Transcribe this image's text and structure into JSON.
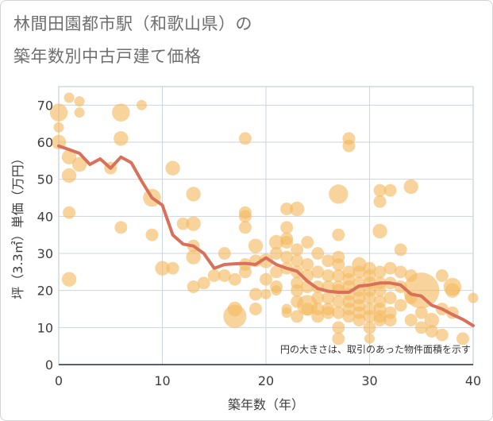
{
  "title_line1": "林間田園都市駅（和歌山県）の",
  "title_line2": "築年数別中古戸建て価格",
  "chart_data": {
    "type": "scatter",
    "xlabel": "築年数（年）",
    "ylabel": "坪（3.3㎡）単価（万円）",
    "xlim": [
      0,
      40
    ],
    "ylim": [
      0,
      75
    ],
    "xticks": [
      0,
      10,
      20,
      30,
      40
    ],
    "yticks": [
      0,
      10,
      20,
      30,
      40,
      50,
      60,
      70
    ],
    "grid": true,
    "note": "円の大きさは、取引のあった物件面積を示す",
    "colors": {
      "bubble": "#f3b95f",
      "line": "#d9705a",
      "grid": "#cdd5e0"
    },
    "bubbles": [
      {
        "x": 0,
        "y": 68,
        "s": 3
      },
      {
        "x": 0,
        "y": 64,
        "s": 1
      },
      {
        "x": 0,
        "y": 60,
        "s": 2
      },
      {
        "x": 1,
        "y": 72,
        "s": 1
      },
      {
        "x": 1,
        "y": 56,
        "s": 2
      },
      {
        "x": 1,
        "y": 51,
        "s": 2
      },
      {
        "x": 1,
        "y": 41,
        "s": 1.5
      },
      {
        "x": 1,
        "y": 23,
        "s": 2
      },
      {
        "x": 2,
        "y": 71,
        "s": 1
      },
      {
        "x": 2,
        "y": 68,
        "s": 1
      },
      {
        "x": 2,
        "y": 54,
        "s": 2
      },
      {
        "x": 5,
        "y": 53,
        "s": 1.5
      },
      {
        "x": 6,
        "y": 68,
        "s": 3
      },
      {
        "x": 6,
        "y": 61,
        "s": 2
      },
      {
        "x": 6,
        "y": 37,
        "s": 1.5
      },
      {
        "x": 8,
        "y": 70,
        "s": 1
      },
      {
        "x": 9,
        "y": 45,
        "s": 3
      },
      {
        "x": 9,
        "y": 35,
        "s": 1.5
      },
      {
        "x": 10,
        "y": 26,
        "s": 2
      },
      {
        "x": 11,
        "y": 53,
        "s": 2
      },
      {
        "x": 11,
        "y": 26,
        "s": 1.5
      },
      {
        "x": 12,
        "y": 38,
        "s": 1.5
      },
      {
        "x": 13,
        "y": 46,
        "s": 2
      },
      {
        "x": 13,
        "y": 38,
        "s": 2
      },
      {
        "x": 13,
        "y": 32,
        "s": 1.5
      },
      {
        "x": 13,
        "y": 29,
        "s": 2
      },
      {
        "x": 13,
        "y": 21,
        "s": 1.5
      },
      {
        "x": 14,
        "y": 22,
        "s": 1.5
      },
      {
        "x": 15,
        "y": 24,
        "s": 1.5
      },
      {
        "x": 16,
        "y": 30,
        "s": 1.5
      },
      {
        "x": 16,
        "y": 24,
        "s": 1.5
      },
      {
        "x": 17,
        "y": 13,
        "s": 5
      },
      {
        "x": 17,
        "y": 15,
        "s": 2
      },
      {
        "x": 17,
        "y": 23,
        "s": 1.5
      },
      {
        "x": 18,
        "y": 61,
        "s": 1.5
      },
      {
        "x": 18,
        "y": 41,
        "s": 1.5
      },
      {
        "x": 18,
        "y": 40,
        "s": 1.5
      },
      {
        "x": 18,
        "y": 37,
        "s": 1.5
      },
      {
        "x": 18,
        "y": 27,
        "s": 1.5
      },
      {
        "x": 18,
        "y": 25,
        "s": 1.5
      },
      {
        "x": 19,
        "y": 32,
        "s": 2
      },
      {
        "x": 19,
        "y": 28,
        "s": 1.5
      },
      {
        "x": 19,
        "y": 19,
        "s": 1.5
      },
      {
        "x": 19,
        "y": 15,
        "s": 1.5
      },
      {
        "x": 20,
        "y": 28,
        "s": 2
      },
      {
        "x": 20,
        "y": 23,
        "s": 1.5
      },
      {
        "x": 20,
        "y": 19,
        "s": 1
      },
      {
        "x": 21,
        "y": 33,
        "s": 2
      },
      {
        "x": 21,
        "y": 30,
        "s": 1.5
      },
      {
        "x": 21,
        "y": 25,
        "s": 1.5
      },
      {
        "x": 21,
        "y": 21,
        "s": 1.5
      },
      {
        "x": 21,
        "y": 20,
        "s": 1
      },
      {
        "x": 22,
        "y": 42,
        "s": 1.5
      },
      {
        "x": 22,
        "y": 37,
        "s": 1.5
      },
      {
        "x": 22,
        "y": 34,
        "s": 1.5
      },
      {
        "x": 22,
        "y": 33,
        "s": 1.5
      },
      {
        "x": 22,
        "y": 29,
        "s": 1.5
      },
      {
        "x": 22,
        "y": 26,
        "s": 1.5
      },
      {
        "x": 22,
        "y": 15,
        "s": 1
      },
      {
        "x": 22,
        "y": 14,
        "s": 1
      },
      {
        "x": 23,
        "y": 42,
        "s": 2
      },
      {
        "x": 23,
        "y": 31,
        "s": 1.5
      },
      {
        "x": 23,
        "y": 28,
        "s": 1.5
      },
      {
        "x": 23,
        "y": 25,
        "s": 1.5
      },
      {
        "x": 23,
        "y": 22,
        "s": 1.5
      },
      {
        "x": 23,
        "y": 20,
        "s": 1.5
      },
      {
        "x": 23,
        "y": 17,
        "s": 1.5
      },
      {
        "x": 23,
        "y": 13,
        "s": 1.5
      },
      {
        "x": 24,
        "y": 33,
        "s": 1.5
      },
      {
        "x": 24,
        "y": 27,
        "s": 1.5
      },
      {
        "x": 24,
        "y": 24,
        "s": 1.5
      },
      {
        "x": 24,
        "y": 21,
        "s": 1.5
      },
      {
        "x": 24,
        "y": 16,
        "s": 4
      },
      {
        "x": 24,
        "y": 15,
        "s": 1.5
      },
      {
        "x": 25,
        "y": 30,
        "s": 1.5
      },
      {
        "x": 25,
        "y": 25,
        "s": 1.5
      },
      {
        "x": 25,
        "y": 21,
        "s": 1.5
      },
      {
        "x": 25,
        "y": 18,
        "s": 1.5
      },
      {
        "x": 25,
        "y": 15,
        "s": 1.5
      },
      {
        "x": 25,
        "y": 13,
        "s": 1.5
      },
      {
        "x": 26,
        "y": 28,
        "s": 1.5
      },
      {
        "x": 26,
        "y": 24,
        "s": 1.5
      },
      {
        "x": 26,
        "y": 21,
        "s": 1.5
      },
      {
        "x": 26,
        "y": 18,
        "s": 1.5
      },
      {
        "x": 26,
        "y": 15,
        "s": 1.5
      },
      {
        "x": 26,
        "y": 14,
        "s": 1.5
      },
      {
        "x": 27,
        "y": 46,
        "s": 3.5
      },
      {
        "x": 27,
        "y": 35,
        "s": 1.5
      },
      {
        "x": 27,
        "y": 29,
        "s": 1.5
      },
      {
        "x": 27,
        "y": 27,
        "s": 1.5
      },
      {
        "x": 27,
        "y": 24,
        "s": 1.5
      },
      {
        "x": 27,
        "y": 21,
        "s": 1.5
      },
      {
        "x": 27,
        "y": 20,
        "s": 1.5
      },
      {
        "x": 27,
        "y": 17,
        "s": 1.5
      },
      {
        "x": 27,
        "y": 14,
        "s": 1.5
      },
      {
        "x": 27,
        "y": 10,
        "s": 1.5
      },
      {
        "x": 27,
        "y": 7,
        "s": 1.5
      },
      {
        "x": 28,
        "y": 61,
        "s": 1.5
      },
      {
        "x": 28,
        "y": 59,
        "s": 1.5
      },
      {
        "x": 28,
        "y": 25,
        "s": 1.5
      },
      {
        "x": 28,
        "y": 23,
        "s": 1.5
      },
      {
        "x": 28,
        "y": 21,
        "s": 1.5
      },
      {
        "x": 28,
        "y": 19,
        "s": 1.5
      },
      {
        "x": 28,
        "y": 17,
        "s": 1.5
      },
      {
        "x": 28,
        "y": 15,
        "s": 1.5
      },
      {
        "x": 28,
        "y": 13,
        "s": 1.5
      },
      {
        "x": 29,
        "y": 27,
        "s": 2
      },
      {
        "x": 29,
        "y": 25,
        "s": 1.5
      },
      {
        "x": 29,
        "y": 22,
        "s": 1.5
      },
      {
        "x": 29,
        "y": 20,
        "s": 1.5
      },
      {
        "x": 29,
        "y": 18,
        "s": 1.5
      },
      {
        "x": 29,
        "y": 16,
        "s": 1.5
      },
      {
        "x": 29,
        "y": 14,
        "s": 1.5
      },
      {
        "x": 29,
        "y": 12,
        "s": 1.5
      },
      {
        "x": 30,
        "y": 26,
        "s": 1.5
      },
      {
        "x": 30,
        "y": 24,
        "s": 1.5
      },
      {
        "x": 30,
        "y": 22,
        "s": 1.5
      },
      {
        "x": 30,
        "y": 20,
        "s": 1.5
      },
      {
        "x": 30,
        "y": 18,
        "s": 1.5
      },
      {
        "x": 30,
        "y": 15,
        "s": 1.5
      },
      {
        "x": 30,
        "y": 13,
        "s": 1.5
      },
      {
        "x": 30,
        "y": 10,
        "s": 1.5
      },
      {
        "x": 30,
        "y": 7,
        "s": 1
      },
      {
        "x": 31,
        "y": 47,
        "s": 1.5
      },
      {
        "x": 31,
        "y": 44,
        "s": 1.5
      },
      {
        "x": 31,
        "y": 36,
        "s": 2
      },
      {
        "x": 31,
        "y": 25,
        "s": 1.5
      },
      {
        "x": 31,
        "y": 22,
        "s": 1.5
      },
      {
        "x": 31,
        "y": 20,
        "s": 1.5
      },
      {
        "x": 31,
        "y": 17,
        "s": 1.5
      },
      {
        "x": 31,
        "y": 15,
        "s": 1.5
      },
      {
        "x": 31,
        "y": 13,
        "s": 1.5
      },
      {
        "x": 31,
        "y": 12,
        "s": 1.5
      },
      {
        "x": 32,
        "y": 47,
        "s": 1.5
      },
      {
        "x": 32,
        "y": 26,
        "s": 1.5
      },
      {
        "x": 32,
        "y": 22,
        "s": 1.5
      },
      {
        "x": 32,
        "y": 18,
        "s": 1.5
      },
      {
        "x": 32,
        "y": 14,
        "s": 1.5
      },
      {
        "x": 32,
        "y": 12,
        "s": 1.5
      },
      {
        "x": 33,
        "y": 31,
        "s": 1.5
      },
      {
        "x": 33,
        "y": 25,
        "s": 1.5
      },
      {
        "x": 33,
        "y": 21,
        "s": 1.5
      },
      {
        "x": 33,
        "y": 16,
        "s": 1.5
      },
      {
        "x": 34,
        "y": 48,
        "s": 2
      },
      {
        "x": 34,
        "y": 24,
        "s": 1.5
      },
      {
        "x": 34,
        "y": 18,
        "s": 1.5
      },
      {
        "x": 34,
        "y": 12,
        "s": 1.5
      },
      {
        "x": 35,
        "y": 20,
        "s": 12
      },
      {
        "x": 35,
        "y": 14,
        "s": 1.5
      },
      {
        "x": 35,
        "y": 10,
        "s": 1.5
      },
      {
        "x": 36,
        "y": 12,
        "s": 2
      },
      {
        "x": 36,
        "y": 9,
        "s": 1.5
      },
      {
        "x": 37,
        "y": 24,
        "s": 1.5
      },
      {
        "x": 37,
        "y": 15,
        "s": 1.5
      },
      {
        "x": 37,
        "y": 8,
        "s": 1.5
      },
      {
        "x": 38,
        "y": 21,
        "s": 3
      },
      {
        "x": 38,
        "y": 20,
        "s": 2
      },
      {
        "x": 38,
        "y": 14,
        "s": 1.5
      },
      {
        "x": 39,
        "y": 7,
        "s": 1.5
      },
      {
        "x": 40,
        "y": 18,
        "s": 1
      }
    ],
    "series": [
      {
        "x": [
          0,
          1,
          2,
          3,
          4,
          5,
          6,
          7,
          8,
          9,
          10,
          11,
          12,
          13,
          14,
          15,
          16,
          17,
          18,
          19,
          20,
          21,
          22,
          23,
          24,
          25,
          26,
          27,
          28,
          29,
          30,
          31,
          32,
          33,
          34,
          35,
          36,
          37,
          38,
          39,
          40
        ],
        "y": [
          59,
          58,
          57,
          54,
          55.5,
          53,
          56,
          54.5,
          49.5,
          45,
          43,
          35,
          32.5,
          32,
          30,
          26,
          27,
          27.2,
          27.3,
          27,
          28.8,
          27,
          26,
          25.2,
          22.5,
          20.5,
          19.8,
          19.5,
          19.5,
          21.2,
          21.5,
          22,
          22,
          21.5,
          19,
          18.5,
          16,
          15,
          13.5,
          12.2,
          10.5
        ]
      }
    ]
  }
}
